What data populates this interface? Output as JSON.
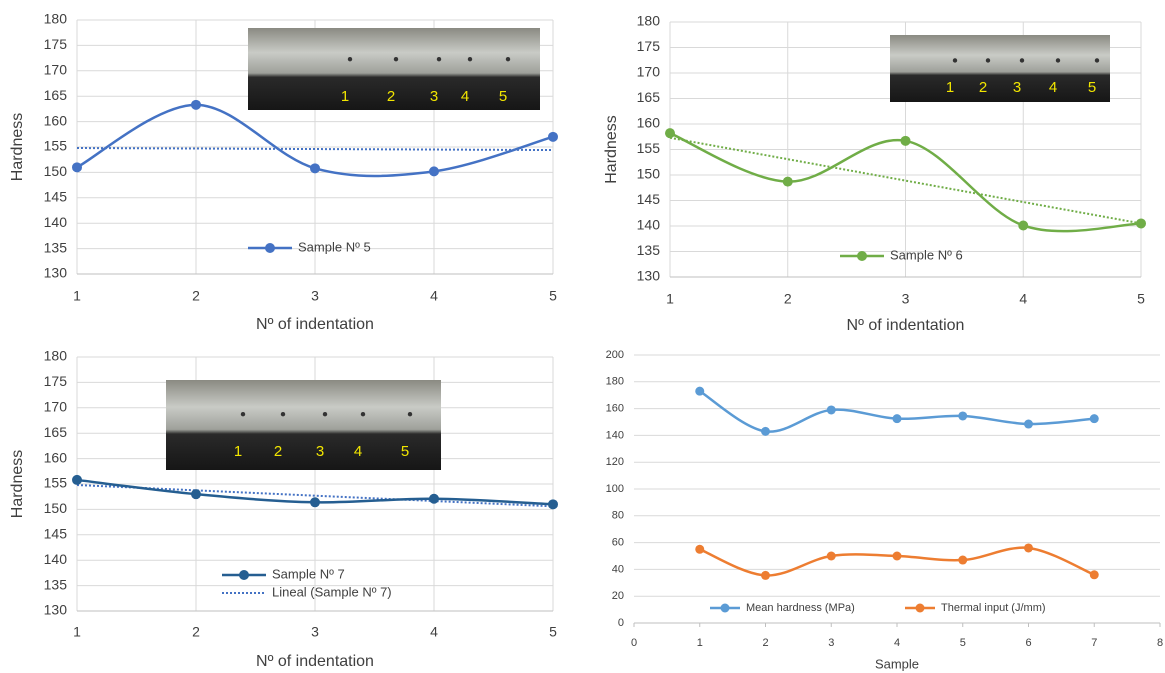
{
  "chart_data": [
    {
      "type": "line",
      "xlabel": "Nº of indentation",
      "ylabel": "Hardness",
      "x": [
        1,
        2,
        3,
        4,
        5
      ],
      "xlim": [
        1,
        5
      ],
      "xticks": [
        1,
        2,
        3,
        4,
        5
      ],
      "ylim": [
        130,
        180
      ],
      "yticks": [
        130,
        135,
        140,
        145,
        150,
        155,
        160,
        165,
        170,
        175,
        180
      ],
      "grid": true,
      "series": [
        {
          "name": "Sample Nº 5",
          "color": "#4472c4",
          "values": [
            151,
            163.3,
            150.8,
            150.2,
            157
          ]
        }
      ],
      "trendline": {
        "color": "#4472c4",
        "values": [
          154.8,
          154.4
        ]
      },
      "inset_labels": [
        "1",
        "2",
        "3",
        "4",
        "5"
      ]
    },
    {
      "type": "line",
      "xlabel": "Nº of indentation",
      "ylabel": "Hardness",
      "x": [
        1,
        2,
        3,
        4,
        5
      ],
      "xlim": [
        1,
        5
      ],
      "xticks": [
        1,
        2,
        3,
        4,
        5
      ],
      "ylim": [
        130,
        180
      ],
      "yticks": [
        130,
        135,
        140,
        145,
        150,
        155,
        160,
        165,
        170,
        175,
        180
      ],
      "grid": true,
      "series": [
        {
          "name": "Sample Nº 6",
          "color": "#70ad47",
          "values": [
            158.2,
            148.7,
            156.7,
            140.1,
            140.5
          ]
        }
      ],
      "trendline": {
        "color": "#70ad47",
        "values": [
          157.3,
          140.5
        ]
      },
      "inset_labels": [
        "1",
        "2",
        "3",
        "4",
        "5"
      ]
    },
    {
      "type": "line",
      "xlabel": "Nº of indentation",
      "ylabel": "Hardness",
      "x": [
        1,
        2,
        3,
        4,
        5
      ],
      "xlim": [
        1,
        5
      ],
      "xticks": [
        1,
        2,
        3,
        4,
        5
      ],
      "ylim": [
        130,
        180
      ],
      "yticks": [
        130,
        135,
        140,
        145,
        150,
        155,
        160,
        165,
        170,
        175,
        180
      ],
      "grid": true,
      "series": [
        {
          "name": "Sample Nº 7",
          "color": "#255e91",
          "values": [
            155.8,
            153,
            151.4,
            152.1,
            151
          ]
        }
      ],
      "trendline": {
        "name": "Lineal (Sample Nº 7)",
        "color": "#4472c4",
        "values": [
          154.8,
          150.6
        ]
      },
      "inset_labels": [
        "1",
        "2",
        "3",
        "4",
        "5"
      ]
    },
    {
      "type": "line",
      "xlabel": "Sample",
      "x": [
        1,
        2,
        3,
        4,
        5,
        6,
        7
      ],
      "xlim": [
        0,
        8
      ],
      "xticks": [
        0,
        1,
        2,
        3,
        4,
        5,
        6,
        7,
        8
      ],
      "ylim": [
        0,
        200
      ],
      "yticks": [
        0,
        20,
        40,
        60,
        80,
        100,
        120,
        140,
        160,
        180,
        200
      ],
      "grid": true,
      "series": [
        {
          "name": "Mean hardness (MPa)",
          "color": "#5b9bd5",
          "values": [
            173,
            143,
            159,
            152.5,
            154.5,
            148.5,
            152.5
          ]
        },
        {
          "name": "Thermal input (J/mm)",
          "color": "#ed7d31",
          "values": [
            55,
            35.5,
            50,
            50,
            47,
            56,
            36
          ]
        }
      ]
    }
  ]
}
